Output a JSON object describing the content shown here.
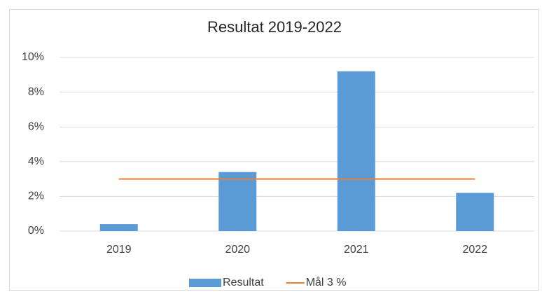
{
  "chart_data": {
    "type": "bar",
    "title": "Resultat 2019-2022",
    "categories": [
      "2019",
      "2020",
      "2021",
      "2022"
    ],
    "series": [
      {
        "name": "Resultat",
        "type": "bar",
        "color": "#5b9bd5",
        "values": [
          0.4,
          3.4,
          9.2,
          2.2
        ]
      },
      {
        "name": "Mål 3 %",
        "type": "line",
        "color": "#ed7d31",
        "values": [
          3,
          3,
          3,
          3
        ]
      }
    ],
    "ylim": [
      0,
      10
    ],
    "yticks": [
      {
        "value": 0,
        "label": "0%"
      },
      {
        "value": 2,
        "label": "2%"
      },
      {
        "value": 4,
        "label": "4%"
      },
      {
        "value": 6,
        "label": "6%"
      },
      {
        "value": 8,
        "label": "8%"
      },
      {
        "value": 10,
        "label": "10%"
      }
    ],
    "grid": true,
    "legend": "bottom"
  }
}
